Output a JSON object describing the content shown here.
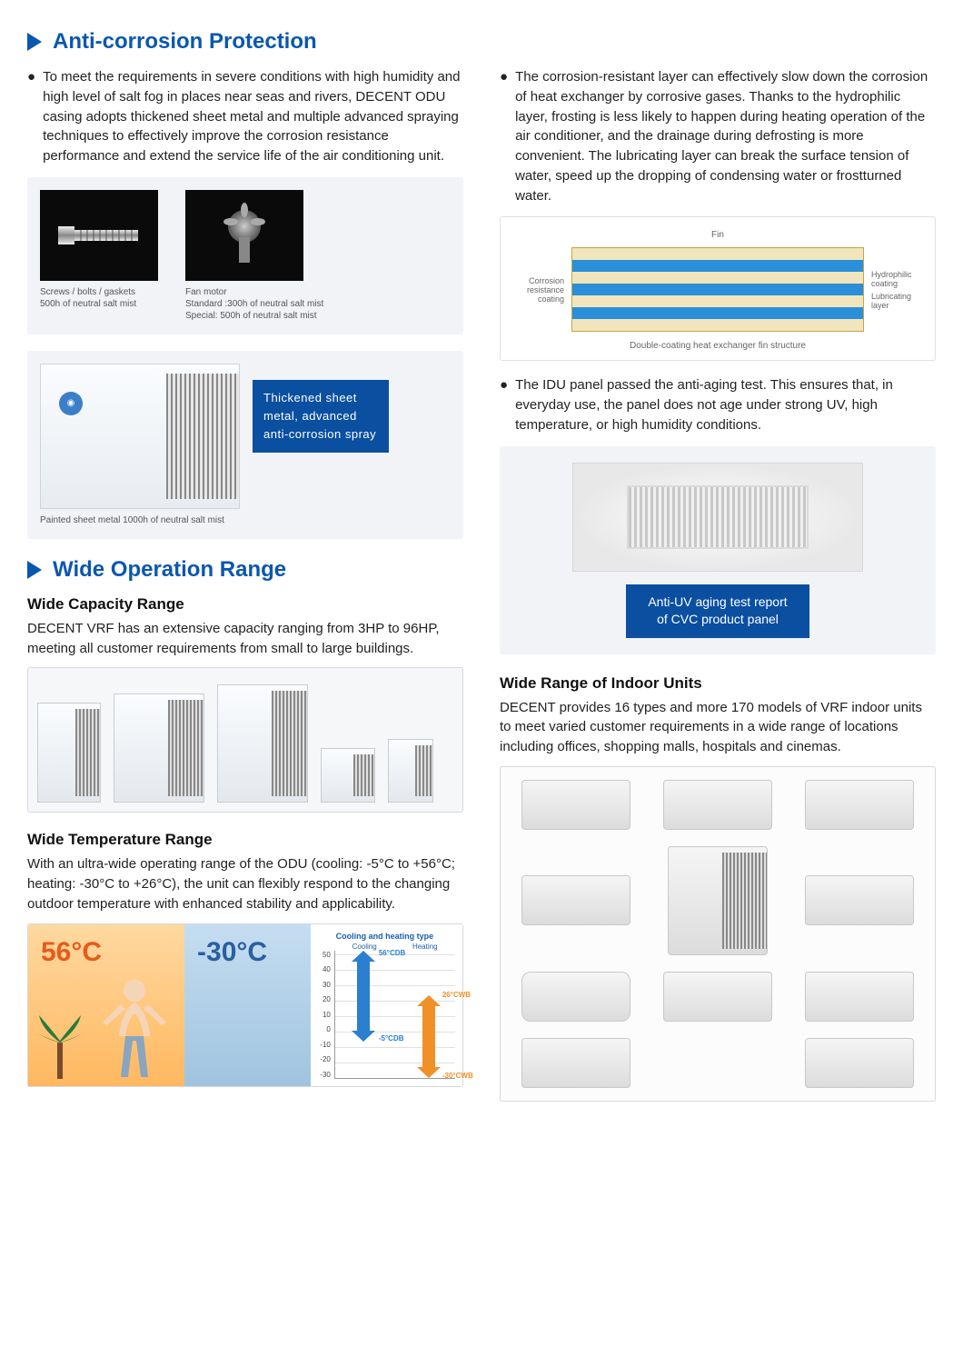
{
  "colors": {
    "accent": "#0a57b0",
    "panel_bg": "#f1f3f7",
    "callout_bg": "#0a4fa0",
    "hot_text": "#e85a1a",
    "cold_text": "#2a5fa0",
    "fin_blue": "#2a8fd8",
    "fin_cream": "#f0e5bc",
    "fin_border": "#c5a641",
    "arrow_blue": "#2a7fd0",
    "arrow_orange": "#f09028"
  },
  "section1": {
    "title": "Anti-corrosion Protection",
    "bullet_left": "To meet the requirements in severe conditions with high humidity and high level of salt fog in places near seas and rivers, DECENT ODU casing adopts thickened sheet metal and multiple advanced spraying techniques to effectively improve the corrosion resistance performance and extend the service life of the air conditioning unit.",
    "bullet_right1": "The corrosion-resistant layer can effectively slow down the corrosion of heat exchanger by corrosive gases. Thanks to the hydrophilic layer, frosting is less likely to happen during heating operation of the air conditioner, and the drainage during defrosting is more convenient. The lubricating layer can break the surface tension of water, speed up the dropping of condensing water or frostturned water.",
    "bullet_right2": "The IDU panel passed the anti-aging test. This ensures that, in everyday use, the panel does not age under strong UV, high temperature, or high humidity conditions.",
    "components": {
      "screw": {
        "title": "Screws / bolts / gaskets",
        "sub": "500h of neutral salt mist"
      },
      "fan": {
        "title": "Fan motor",
        "sub1": "Standard :300h of neutral salt mist",
        "sub2": "Special: 500h of neutral salt mist"
      }
    },
    "odu": {
      "callout": "Thickened sheet metal, advanced anti-corrosion spray",
      "caption": "Painted sheet metal 1000h of neutral salt mist"
    },
    "fin": {
      "top_label": "Fin",
      "left_label": "Corrosion resistance coating",
      "right_label1": "Hydrophilic coating",
      "right_label2": "Lubricating layer",
      "caption": "Double-coating heat exchanger fin structure",
      "layers": [
        "#f0e5bc",
        "#2a8fd8",
        "#f0e5bc",
        "#2a8fd8",
        "#f0e5bc",
        "#2a8fd8",
        "#f0e5bc"
      ]
    },
    "idu_badge": {
      "line1": "Anti-UV aging test report",
      "line2": "of CVC product panel"
    }
  },
  "section2": {
    "title": "Wide Operation Range",
    "capacity": {
      "heading": "Wide Capacity Range",
      "text": "DECENT VRF has an extensive capacity ranging from 3HP to 96HP, meeting all customer requirements from small to large buildings.",
      "units": [
        {
          "w": 70,
          "h": 110
        },
        {
          "w": 100,
          "h": 120
        },
        {
          "w": 100,
          "h": 130
        },
        {
          "w": 60,
          "h": 60
        },
        {
          "w": 50,
          "h": 70
        }
      ]
    },
    "temperature": {
      "heading": "Wide Temperature Range",
      "text": "With an ultra-wide operating range of the ODU (cooling: -5°C to +56°C; heating: -30°C to +26°C), the unit can flexibly respond to the changing outdoor temperature with enhanced stability and applicability.",
      "hot": "56°C",
      "cold": "-30°C",
      "chart": {
        "title": "Cooling and heating type",
        "cooling_label": "Cooling",
        "heating_label": "Heating",
        "ticks": [
          "50",
          "40",
          "30",
          "20",
          "10",
          "0",
          "-10",
          "-20",
          "-30"
        ],
        "cool_top": "56°CDB",
        "cool_bot": "-5°CDB",
        "heat_top": "26°CWB",
        "heat_bot": "-30°CWB"
      }
    },
    "indoor": {
      "heading": "Wide Range of Indoor Units",
      "text": "DECENT provides 16 types and more 170 models of VRF indoor units to meet varied customer requirements in a wide range of locations including offices, shopping malls, hospitals and cinemas."
    }
  }
}
